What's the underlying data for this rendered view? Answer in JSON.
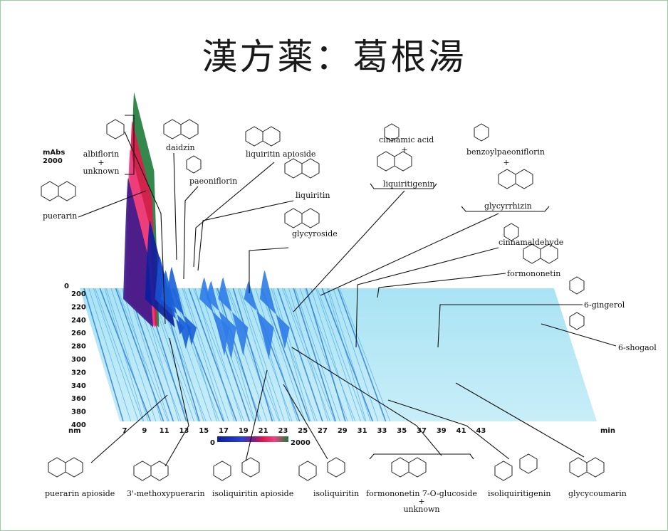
{
  "slide": {
    "title": "漢方薬：葛根湯"
  },
  "chart_data": {
    "type": "3d-chromatogram",
    "y_axis_title": "mAbs",
    "y_axis_value": "2000",
    "z_axis_zero": "0",
    "wavelength_unit": "nm",
    "wavelengths": [
      "200",
      "220",
      "240",
      "260",
      "280",
      "300",
      "320",
      "340",
      "360",
      "380",
      "400"
    ],
    "time_unit": "min",
    "time_ticks": [
      "7",
      "9",
      "11",
      "13",
      "15",
      "17",
      "19",
      "21",
      "23",
      "25",
      "27",
      "29",
      "31",
      "33",
      "35",
      "37",
      "39",
      "41",
      "43"
    ],
    "colorbar_min": "0",
    "colorbar_max": "2000",
    "colorbar_colors": [
      "#0a1f9e",
      "#2a3fd0",
      "#7b1c8a",
      "#e3184a",
      "#f04080",
      "#1e7a3a"
    ],
    "compounds_top": [
      {
        "name": "albiflorin",
        "extra": "+",
        "extra2": "unknown"
      },
      {
        "name": "puerarin"
      },
      {
        "name": "daidzin"
      },
      {
        "name": "paeoniflorin"
      },
      {
        "name": "liquiritin apioside"
      },
      {
        "name": "liquiritin"
      },
      {
        "name": "glycyroside"
      },
      {
        "name": "cinnamic acid",
        "extra": "+"
      },
      {
        "name": "liquiritigenin"
      },
      {
        "name": "benzoylpaeoniflorin",
        "extra": "+"
      },
      {
        "name": "glycyrrhizin"
      },
      {
        "name": "cinnamaldehyde"
      },
      {
        "name": "formononetin"
      },
      {
        "name": "6-gingerol"
      },
      {
        "name": "6-shogaol"
      }
    ],
    "compounds_bottom": [
      {
        "name": "puerarin apioside"
      },
      {
        "name": "3'-methoxypuerarin"
      },
      {
        "name": "isoliquiritin apioside"
      },
      {
        "name": "isoliquiritin"
      },
      {
        "name": "formononetin 7-O-glucoside",
        "extra": "+",
        "extra2": "unknown"
      },
      {
        "name": "isoliquiritigenin"
      },
      {
        "name": "glycycoumarin"
      }
    ],
    "peaks": [
      {
        "t": 9.4,
        "h": 290,
        "c": "#1e7a3a"
      },
      {
        "t": 9.2,
        "h": 250,
        "c": "#e3184a"
      },
      {
        "t": 9.0,
        "h": 210,
        "c": "#f04080"
      },
      {
        "t": 8.8,
        "h": 170,
        "c": "#3b1a8c"
      },
      {
        "t": 11.0,
        "h": 110,
        "c": "#0a1f9e"
      },
      {
        "t": 12.0,
        "h": 60,
        "c": "#1a4fd0"
      },
      {
        "t": 12.6,
        "h": 40,
        "c": "#1a5fd8"
      },
      {
        "t": 13.2,
        "h": 45,
        "c": "#1a5fd8"
      },
      {
        "t": 16.5,
        "h": 30,
        "c": "#2f7be8"
      },
      {
        "t": 17.2,
        "h": 25,
        "c": "#2f7be8"
      },
      {
        "t": 18.4,
        "h": 30,
        "c": "#2f7be8"
      },
      {
        "t": 21.0,
        "h": 25,
        "c": "#2f7be8"
      },
      {
        "t": 22.6,
        "h": 40,
        "c": "#2f7be8"
      }
    ]
  }
}
